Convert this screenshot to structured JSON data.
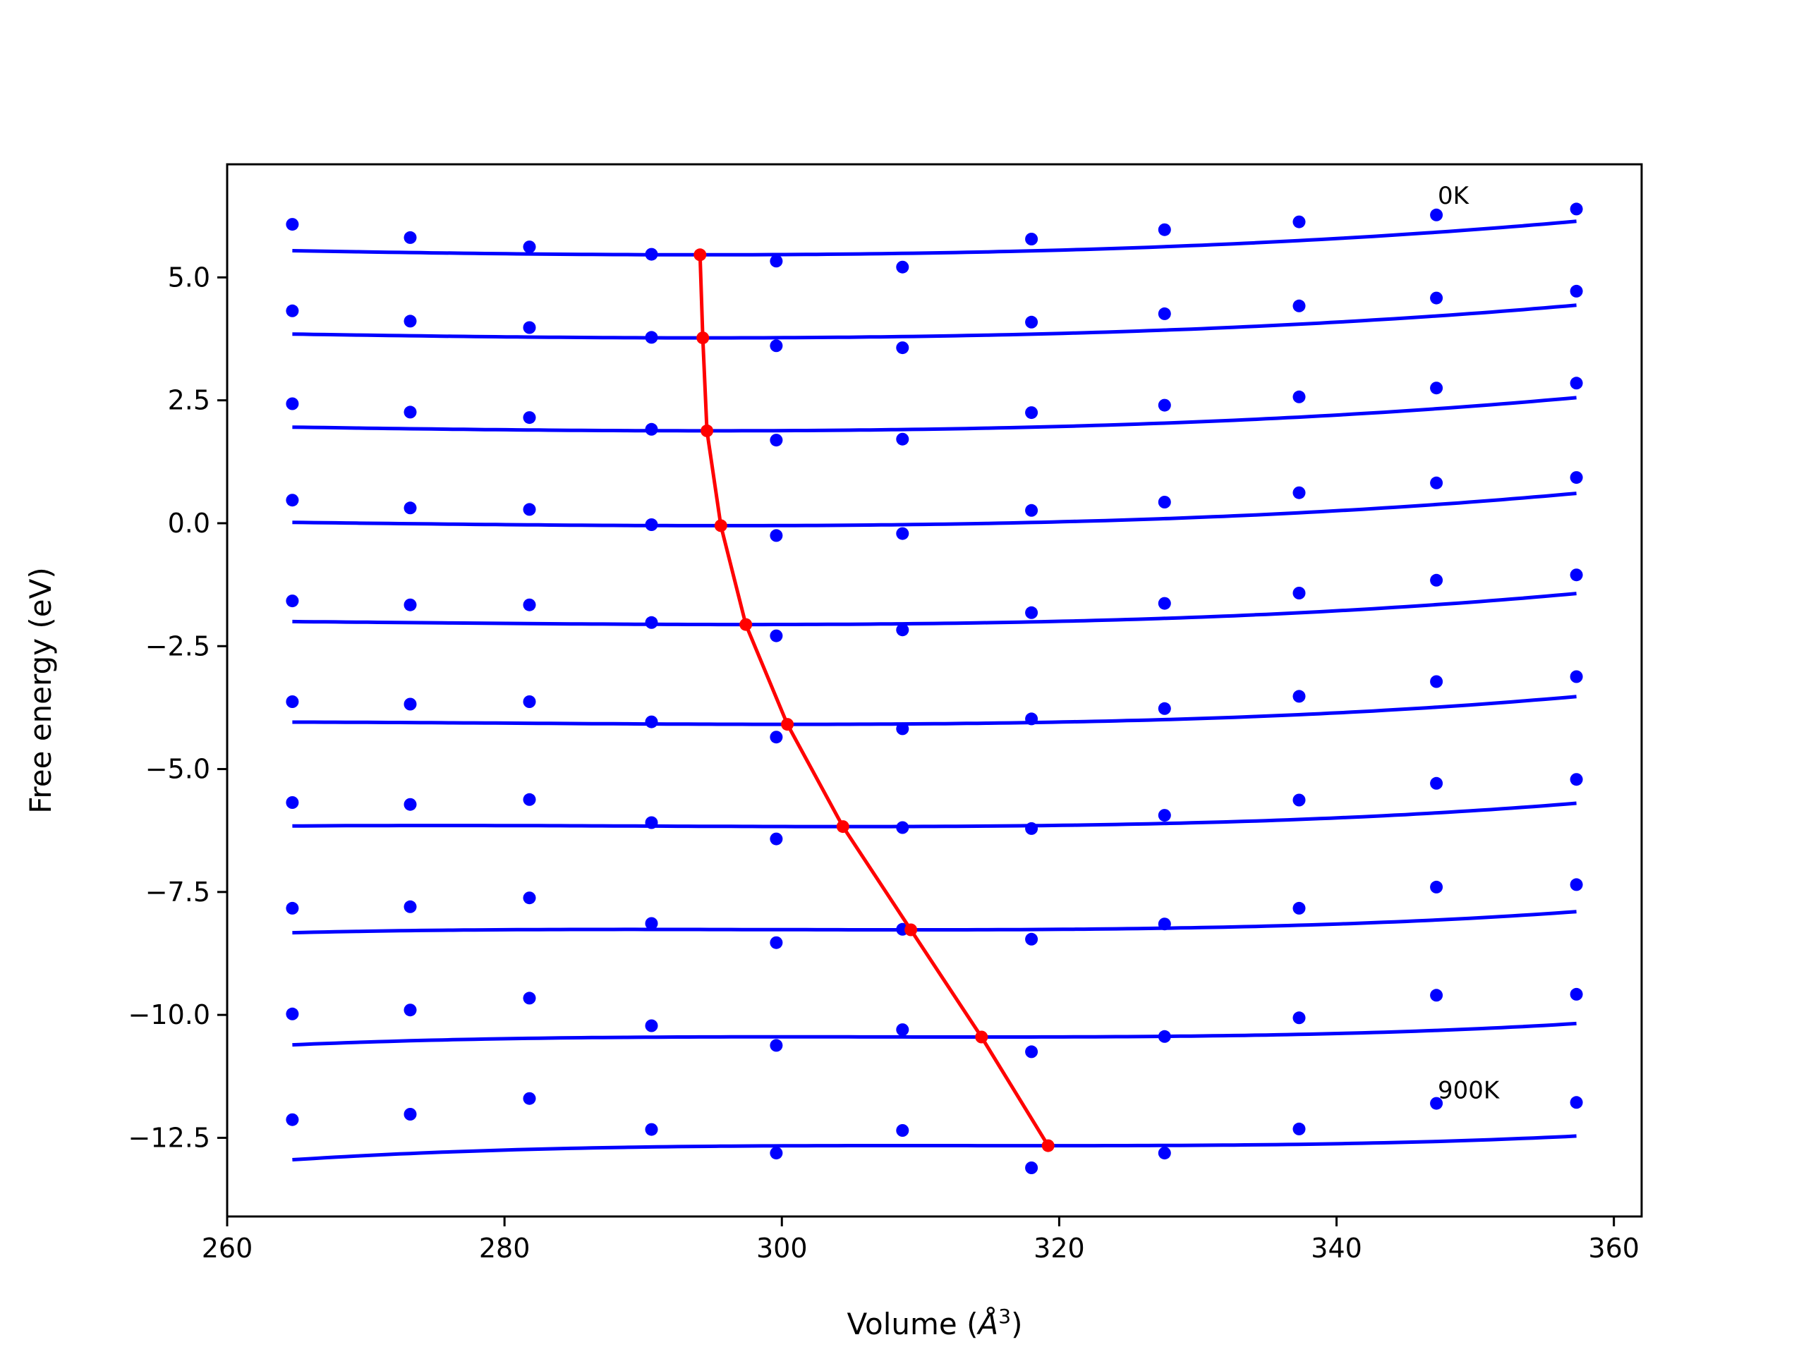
{
  "chart_data": {
    "type": "line",
    "xlabel": "Volume (Å³)",
    "xlabel_parts": {
      "main": "Volume (",
      "unit": "Å",
      "exp": "3",
      "close": ")"
    },
    "ylabel": "Free energy (eV)",
    "xlim": [
      260,
      362
    ],
    "ylim": [
      -14.1,
      7.3
    ],
    "xticks": [
      260,
      280,
      300,
      320,
      340,
      360
    ],
    "xtick_labels": [
      "260",
      "280",
      "300",
      "320",
      "340",
      "360"
    ],
    "yticks": [
      5.0,
      2.5,
      0.0,
      -2.5,
      -5.0,
      -7.5,
      -10.0,
      -12.5
    ],
    "ytick_labels": [
      "5.0",
      "2.5",
      "0.0",
      "−2.5",
      "−5.0",
      "−7.5",
      "−10.0",
      "−12.5"
    ],
    "grid": false,
    "colors": {
      "points": "#0000ff",
      "fits": "#0000ff",
      "minima": "#ff0000"
    },
    "volumes": [
      264.7,
      273.2,
      281.8,
      290.6,
      299.6,
      308.7,
      318.0,
      327.6,
      337.3,
      347.2,
      357.3
    ],
    "points": [
      [
        6.08,
        5.81,
        5.62,
        5.47,
        5.33,
        5.21,
        5.78,
        5.97,
        6.13,
        6.27,
        6.39
      ],
      [
        4.32,
        4.11,
        3.98,
        3.78,
        3.61,
        3.57,
        4.09,
        4.26,
        4.42,
        4.58,
        4.72
      ],
      [
        2.43,
        2.26,
        2.15,
        1.91,
        1.69,
        1.71,
        2.25,
        2.4,
        2.57,
        2.75,
        2.85
      ],
      [
        0.47,
        0.31,
        0.28,
        -0.03,
        -0.25,
        -0.21,
        0.26,
        0.43,
        0.62,
        0.82,
        0.93
      ],
      [
        -1.58,
        -1.66,
        -1.66,
        -2.02,
        -2.29,
        -2.17,
        -1.82,
        -1.63,
        -1.42,
        -1.16,
        -1.05
      ],
      [
        -3.63,
        -3.68,
        -3.63,
        -4.04,
        -4.35,
        -4.18,
        -3.98,
        -3.77,
        -3.52,
        -3.22,
        -3.12
      ],
      [
        -5.68,
        -5.72,
        -5.62,
        -6.09,
        -6.42,
        -6.19,
        -6.21,
        -5.94,
        -5.63,
        -5.29,
        -5.21
      ],
      [
        -7.83,
        -7.8,
        -7.62,
        -8.14,
        -8.53,
        -8.26,
        -8.46,
        -8.15,
        -7.83,
        -7.4,
        -7.35
      ],
      [
        -9.98,
        -9.9,
        -9.66,
        -10.22,
        -10.62,
        -10.3,
        -10.75,
        -10.44,
        -10.06,
        -9.6,
        -9.58
      ],
      [
        -12.13,
        -12.02,
        -11.7,
        -12.33,
        -12.81,
        -12.35,
        -13.11,
        -12.81,
        -12.32,
        -11.8,
        -11.78
      ]
    ],
    "fits": [
      {
        "v0": 294.1,
        "e0": 5.46,
        "curv": 0.00012,
        "cub": 8e-07
      },
      {
        "v0": 294.3,
        "e0": 3.77,
        "curv": 0.000114,
        "cub": 8.5e-07
      },
      {
        "v0": 294.6,
        "e0": 1.88,
        "curv": 0.000112,
        "cub": 9.5e-07
      },
      {
        "v0": 295.6,
        "e0": -0.05,
        "curv": 0.000105,
        "cub": 1.1e-06
      },
      {
        "v0": 297.4,
        "e0": -2.06,
        "curv": 9.8e-05,
        "cub": 1.3e-06
      },
      {
        "v0": 300.4,
        "e0": -4.09,
        "curv": 8.9e-05,
        "cub": 1.5e-06
      },
      {
        "v0": 304.4,
        "e0": -6.17,
        "curv": 7.7e-05,
        "cub": 1.75e-06
      },
      {
        "v0": 309.3,
        "e0": -8.27,
        "curv": 6.2e-05,
        "cub": 2.05e-06
      },
      {
        "v0": 314.4,
        "e0": -10.45,
        "curv": 5e-05,
        "cub": 2.3e-06
      },
      {
        "v0": 319.2,
        "e0": -12.66,
        "curv": 4e-05,
        "cub": 2.5e-06
      }
    ],
    "minima": {
      "x": [
        294.1,
        294.3,
        294.6,
        295.6,
        297.4,
        300.4,
        304.4,
        309.3,
        314.4,
        319.2
      ],
      "y": [
        5.46,
        3.77,
        1.88,
        -0.05,
        -2.06,
        -4.09,
        -6.17,
        -8.27,
        -10.45,
        -12.66
      ]
    },
    "annotations": [
      {
        "text": "0K",
        "x": 347.3,
        "y": 6.5
      },
      {
        "text": "900K",
        "x": 347.3,
        "y": -11.7
      }
    ]
  }
}
